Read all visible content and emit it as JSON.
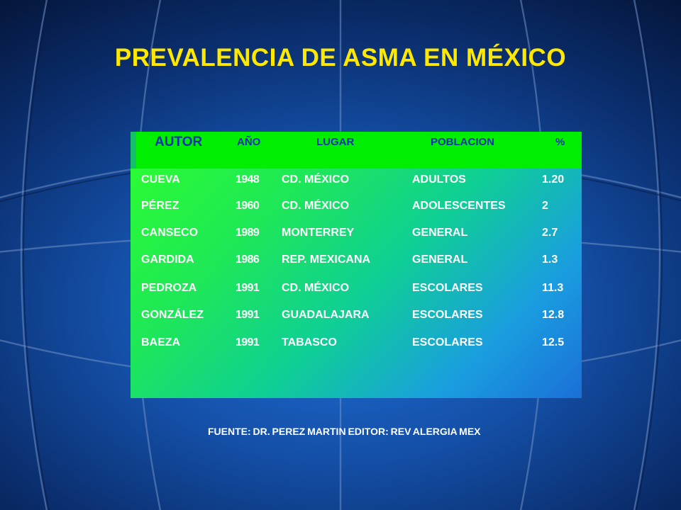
{
  "title": "PREVALENCIA DE ASMA EN MÉXICO",
  "table": {
    "headers": {
      "autor": "AUTOR",
      "anio": "AÑO",
      "lugar": "LUGAR",
      "poblacion": "POBLACION",
      "porcentaje": "%"
    },
    "rows": [
      {
        "autor": "CUEVA",
        "anio": "1948",
        "lugar": "CD. MÉXICO",
        "poblacion": "ADULTOS",
        "porcentaje": "1.20"
      },
      {
        "autor": "PÉREZ",
        "anio": "1960",
        "lugar": "CD. MÉXICO",
        "poblacion": "ADOLESCENTES",
        "porcentaje": "2"
      },
      {
        "autor": "CANSECO",
        "anio": "1989",
        "lugar": "MONTERREY",
        "poblacion": "GENERAL",
        "porcentaje": "2.7"
      },
      {
        "autor": "GARDIDA",
        "anio": "1986",
        "lugar": "REP. MEXICANA",
        "poblacion": "GENERAL",
        "porcentaje": "1.3"
      },
      {
        "autor": "PEDROZA",
        "anio": "1991",
        "lugar": "CD. MÉXICO",
        "poblacion": "ESCOLARES",
        "porcentaje": "11.3"
      },
      {
        "autor": "GONZÁLEZ",
        "anio": "1991",
        "lugar": "GUADALAJARA",
        "poblacion": "ESCOLARES",
        "porcentaje": "12.8"
      },
      {
        "autor": "BAEZA",
        "anio": "1991",
        "lugar": "TABASCO",
        "poblacion": "ESCOLARES",
        "porcentaje": "12.5"
      }
    ]
  },
  "footer": "FUENTE: DR. PEREZ MARTIN EDITOR: REV ALERGIA MEX",
  "colors": {
    "title": "#ffe800",
    "header_band": "#00ee00",
    "header_text": "#1230b0",
    "cell_text": "#ffffff"
  }
}
